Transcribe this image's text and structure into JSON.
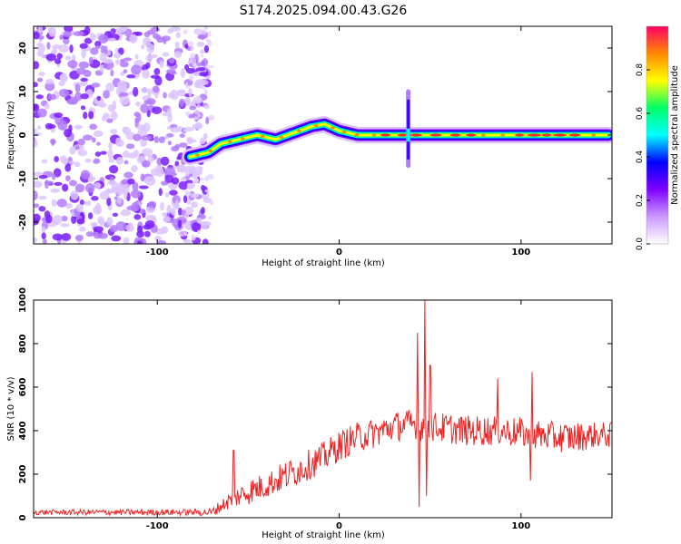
{
  "title": "S174.2025.094.00.43.G26",
  "chart_data": [
    {
      "type": "heatmap",
      "title": "S174.2025.094.00.43.G26",
      "xlabel": "Height of straight line (km)",
      "ylabel": "Frequency (Hz)",
      "xlim": [
        -168,
        150
      ],
      "ylim": [
        -25,
        25
      ],
      "xticks": [
        -100,
        0,
        100
      ],
      "yticks": [
        -20,
        -10,
        0,
        10,
        20
      ],
      "noise_region_x": [
        -168,
        -72
      ],
      "ridge": {
        "description": "spectral ridge (peak frequency vs height)",
        "x": [
          -82,
          -72,
          -65,
          -55,
          -45,
          -35,
          -25,
          -15,
          -8,
          0,
          10,
          20,
          30,
          37,
          40,
          50,
          60,
          70,
          80,
          90,
          100,
          110,
          120,
          130,
          140,
          148
        ],
        "y": [
          -5,
          -4,
          -2,
          -1,
          0,
          -1,
          0.5,
          2,
          2.5,
          1,
          0,
          0,
          0,
          0,
          0,
          0,
          0,
          0,
          0,
          0,
          0,
          0,
          0,
          0,
          0,
          0
        ]
      },
      "spike": {
        "x": 38,
        "y_range": [
          -7,
          10
        ]
      },
      "colorbar": {
        "label": "Normalized spectral amplitude",
        "range": [
          0,
          1
        ],
        "ticks": [
          "0.0",
          "0.2",
          "0.4",
          "0.6",
          "0.8"
        ],
        "colors": [
          "#ffffff",
          "#cc99ff",
          "#7f00ff",
          "#0000ff",
          "#00ffff",
          "#00ff66",
          "#ffff00",
          "#ff8800",
          "#ff0066"
        ]
      }
    },
    {
      "type": "line",
      "xlabel": "Height of straight line (km)",
      "ylabel": "SNR (10 * v/v)",
      "xlim": [
        -168,
        150
      ],
      "ylim": [
        0,
        1000
      ],
      "xticks": [
        -100,
        0,
        100
      ],
      "yticks": [
        0,
        200,
        400,
        600,
        800,
        1000
      ],
      "color": "#ee2222",
      "envelope": {
        "x": [
          -168,
          -80,
          -70,
          -60,
          -50,
          -40,
          -30,
          -20,
          -10,
          0,
          10,
          20,
          30,
          40,
          42,
          45,
          46,
          48,
          50,
          60,
          70,
          80,
          90,
          100,
          105,
          110,
          120,
          130,
          140,
          150
        ],
        "base": [
          25,
          25,
          25,
          80,
          120,
          150,
          190,
          230,
          270,
          330,
          370,
          390,
          420,
          430,
          430,
          420,
          420,
          420,
          420,
          410,
          400,
          400,
          400,
          390,
          380,
          380,
          370,
          370,
          380,
          380
        ],
        "amp": [
          12,
          15,
          20,
          40,
          60,
          60,
          70,
          70,
          70,
          70,
          70,
          70,
          70,
          70,
          70,
          70,
          70,
          70,
          70,
          70,
          70,
          70,
          70,
          70,
          70,
          70,
          70,
          70,
          60,
          60
        ]
      },
      "peaks": [
        {
          "x": -58,
          "y": 310
        },
        {
          "x": 43,
          "y": 850
        },
        {
          "x": 44,
          "y": 50
        },
        {
          "x": 47,
          "y": 1000
        },
        {
          "x": 48,
          "y": 100
        },
        {
          "x": 50,
          "y": 700
        },
        {
          "x": 87,
          "y": 640
        },
        {
          "x": 106,
          "y": 670
        },
        {
          "x": 105,
          "y": 170
        }
      ]
    }
  ]
}
